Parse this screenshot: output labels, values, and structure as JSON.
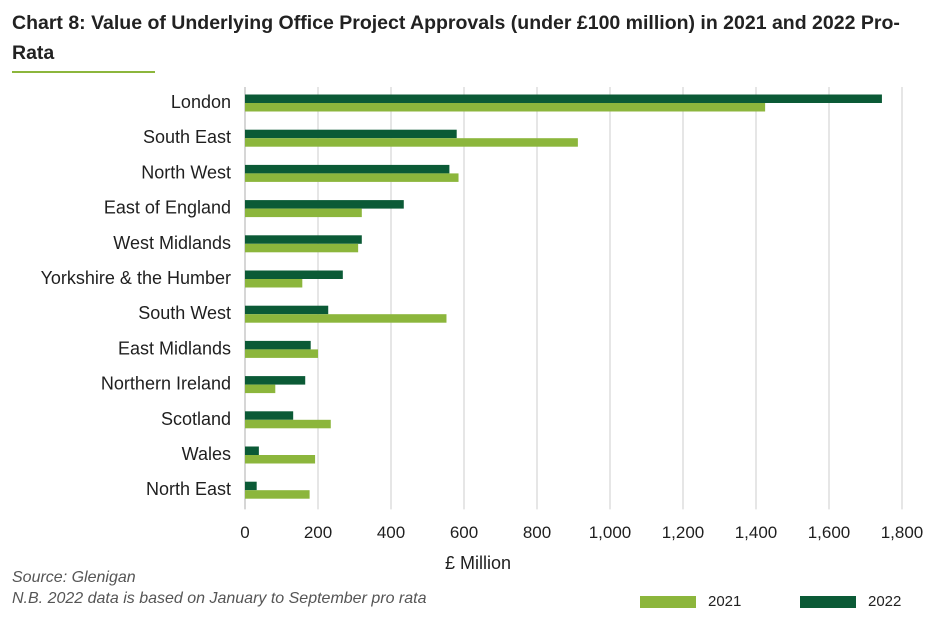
{
  "title": "Chart 8: Value of Underlying Office Project Approvals (under £100 million) in 2021 and 2022 Pro-Rata",
  "source": "Source: Glenigan",
  "note": "N.B. 2022 data is based on January to September pro rata",
  "colors": {
    "2021": "#8cb63c",
    "2022": "#0b5a36",
    "grid": "#d9d9d9",
    "accent": "#8cb63c"
  },
  "chart_data": {
    "type": "bar",
    "orientation": "horizontal",
    "categories": [
      "London",
      "South East",
      "North West",
      "East of England",
      "West Midlands",
      "Yorkshire & the Humber",
      "South West",
      "East Midlands",
      "Northern Ireland",
      "Scotland",
      "Wales",
      "North East"
    ],
    "series": [
      {
        "name": "2022",
        "values": [
          1745,
          580,
          560,
          435,
          320,
          268,
          228,
          180,
          165,
          132,
          38,
          32
        ]
      },
      {
        "name": "2021",
        "values": [
          1425,
          912,
          585,
          320,
          310,
          157,
          552,
          200,
          83,
          235,
          192,
          177
        ]
      }
    ],
    "xlabel": "£ Million",
    "ylabel": "",
    "xlim": [
      0,
      1800
    ],
    "xticks": [
      0,
      200,
      400,
      600,
      800,
      1000,
      1200,
      1400,
      1600,
      1800
    ],
    "xtick_labels": [
      "0",
      "200",
      "400",
      "600",
      "800",
      "1,000",
      "1,200",
      "1,400",
      "1,600",
      "1,800"
    ],
    "grid": true,
    "legend": {
      "placement": "bottom-right",
      "entries": [
        "2021",
        "2022"
      ]
    }
  }
}
